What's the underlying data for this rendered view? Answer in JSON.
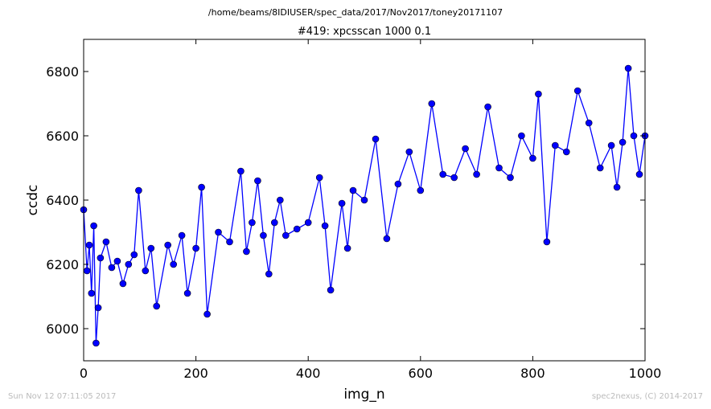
{
  "chart_data": {
    "type": "line",
    "suptitle": "/home/beams/8IDIUSER/spec_data/2017/Nov2017/toney20171107",
    "title": "#419: xpcsscan 1000 0.1",
    "xlabel": "img_n",
    "ylabel": "ccdc",
    "xlim": [
      0,
      1000
    ],
    "ylim": [
      5900,
      6900
    ],
    "xticks": [
      0,
      200,
      400,
      600,
      800,
      1000
    ],
    "yticks": [
      6000,
      6200,
      6400,
      6600,
      6800
    ],
    "grid": false,
    "marker": "circle",
    "series": [
      {
        "color": "#0000ff",
        "x": [
          0,
          6,
          10,
          14,
          18,
          22,
          26,
          30,
          40,
          50,
          60,
          70,
          80,
          90,
          98,
          110,
          120,
          130,
          150,
          160,
          175,
          185,
          200,
          210,
          220,
          240,
          260,
          280,
          290,
          300,
          310,
          320,
          330,
          340,
          350,
          360,
          380,
          400,
          420,
          430,
          440,
          460,
          470,
          480,
          500,
          520,
          540,
          560,
          580,
          600,
          620,
          640,
          660,
          680,
          700,
          720,
          740,
          760,
          780,
          800,
          810,
          825,
          840,
          860,
          880,
          900,
          920,
          940,
          950,
          960,
          970,
          980,
          990,
          1000
        ],
        "values": [
          6370,
          6180,
          6260,
          6110,
          6320,
          5955,
          6065,
          6220,
          6270,
          6190,
          6210,
          6140,
          6200,
          6230,
          6430,
          6180,
          6250,
          6070,
          6260,
          6200,
          6290,
          6110,
          6250,
          6440,
          6045,
          6300,
          6270,
          6490,
          6240,
          6330,
          6460,
          6290,
          6170,
          6330,
          6400,
          6290,
          6310,
          6330,
          6470,
          6320,
          6120,
          6390,
          6250,
          6430,
          6400,
          6590,
          6280,
          6450,
          6550,
          6430,
          6700,
          6480,
          6470,
          6560,
          6480,
          6690,
          6500,
          6470,
          6600,
          6530,
          6730,
          6270,
          6570,
          6550,
          6740,
          6640,
          6500,
          6570,
          6440,
          6580,
          6810,
          6600,
          6480,
          6600
        ]
      }
    ]
  },
  "footer": {
    "left": "Sun Nov 12 07:11:05 2017",
    "right": "spec2nexus, (C) 2014-2017"
  }
}
